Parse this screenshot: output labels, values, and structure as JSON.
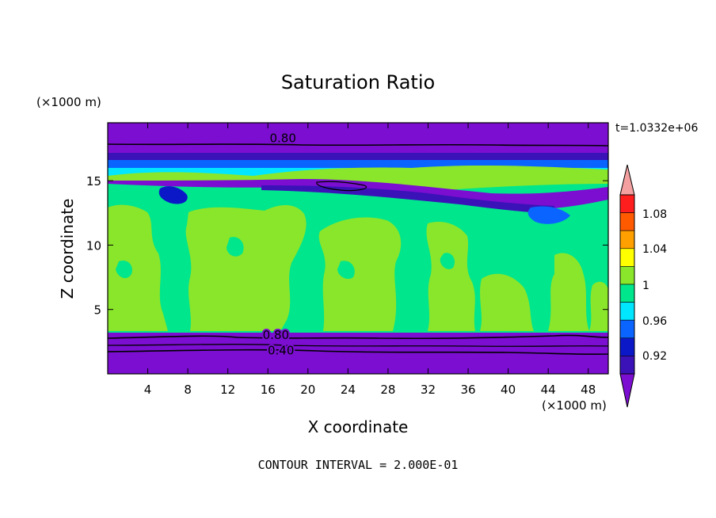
{
  "chart_data": {
    "type": "filled-contour",
    "title": "Saturation Ratio",
    "xlabel": "X coordinate",
    "ylabel": "Z coordinate",
    "x_unit": "(×1000 m)",
    "y_unit": "(×1000 m)",
    "xlim": [
      0,
      50
    ],
    "ylim": [
      0,
      19.5
    ],
    "x_ticks": [
      4,
      8,
      12,
      16,
      20,
      24,
      28,
      32,
      36,
      40,
      44,
      48
    ],
    "y_ticks": [
      5,
      10,
      15
    ],
    "time_label": "t=1.0332e+06",
    "footer": "CONTOUR INTERVAL = 2.000E-01",
    "colorbar": {
      "labels": [
        "0.92",
        "0.96",
        "1",
        "1.04",
        "1.08"
      ],
      "levels": [
        0.92,
        0.94,
        0.96,
        0.98,
        1.0,
        1.02,
        1.04,
        1.06,
        1.08,
        1.1
      ],
      "colors": [
        "#7B0ED0",
        "#3A12B8",
        "#0A18C8",
        "#0A64FF",
        "#00E6FF",
        "#00E68C",
        "#8AE62A",
        "#FFFF00",
        "#FFA000",
        "#FF5A00",
        "#FF1E1E",
        "#F4A0A0"
      ]
    },
    "contour_labels": [
      {
        "text": "0.80",
        "x": 17.5,
        "z": 18.3
      },
      {
        "text": "0.80",
        "x": 16.8,
        "z": 3.0
      },
      {
        "text": "0.40",
        "x": 17.3,
        "z": 1.8
      }
    ]
  }
}
